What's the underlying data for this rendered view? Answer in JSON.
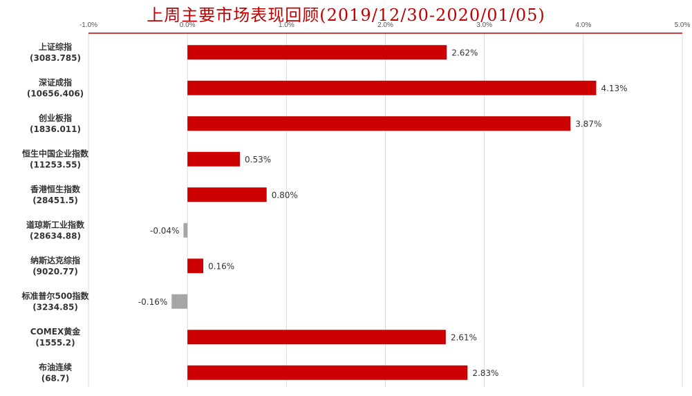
{
  "chart_data": {
    "type": "bar",
    "orientation": "horizontal",
    "title": "上周主要市场表现回顾(2019/12/30-2020/01/05)",
    "categories": [
      {
        "name": "上证综指",
        "value_label": "(3083.785)"
      },
      {
        "name": "深证成指",
        "value_label": "(10656.406)"
      },
      {
        "name": "创业板指",
        "value_label": "(1836.011)"
      },
      {
        "name": "恒生中国企业指数",
        "value_label": "(11253.55)"
      },
      {
        "name": "香港恒生指数",
        "value_label": "(28451.5)"
      },
      {
        "name": "道琼斯工业指数",
        "value_label": "(28634.88)"
      },
      {
        "name": "纳斯达克综指",
        "value_label": "(9020.77)"
      },
      {
        "name": "标准普尔500指数",
        "value_label": "(3234.85)"
      },
      {
        "name": "COMEX黄金",
        "value_label": "(1555.2)"
      },
      {
        "name": "布油连续",
        "value_label": "(68.7)"
      }
    ],
    "values": [
      2.62,
      4.13,
      3.87,
      0.53,
      0.8,
      -0.04,
      0.16,
      -0.16,
      2.61,
      2.83
    ],
    "data_labels": [
      "2.62%",
      "4.13%",
      "3.87%",
      "0.53%",
      "0.80%",
      "-0.04%",
      "0.16%",
      "-0.16%",
      "2.61%",
      "2.83%"
    ],
    "xlim": [
      -1.0,
      5.0
    ],
    "xticks": [
      -1.0,
      0.0,
      1.0,
      2.0,
      3.0,
      4.0,
      5.0
    ],
    "xtick_labels": [
      "-1.0%",
      "0.0%",
      "1.0%",
      "2.0%",
      "3.0%",
      "4.0%",
      "5.0%"
    ],
    "axis_position": "top",
    "grid": true,
    "colors": {
      "positive": "#cc0000",
      "negative": "#a6a6a6",
      "title": "#c00000",
      "axis_line": "#c00000",
      "grid": "#d9d9d9"
    }
  }
}
